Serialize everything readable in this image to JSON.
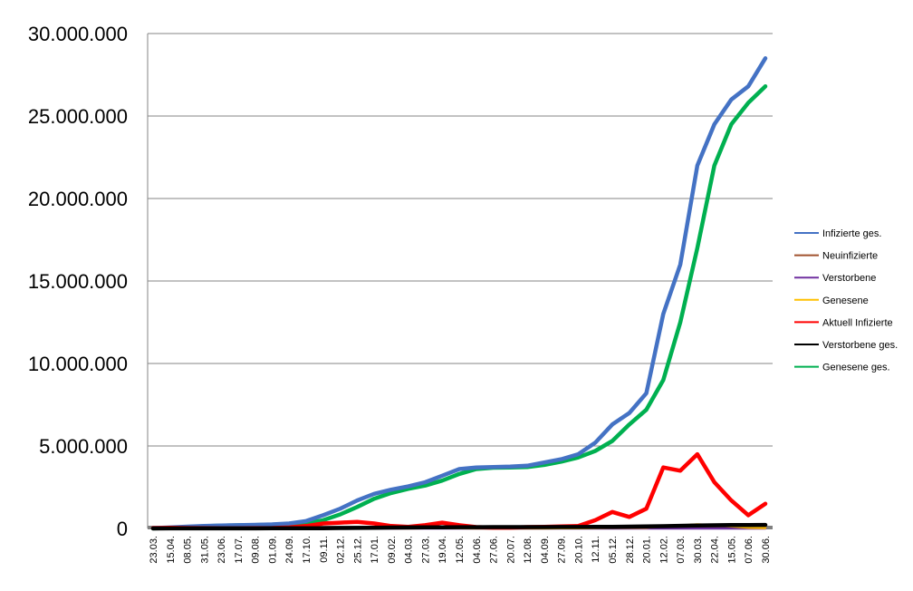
{
  "chart_data": {
    "type": "line",
    "title": "",
    "xlabel": "",
    "ylabel": "",
    "ylim": [
      0,
      30000000
    ],
    "yticks": [
      0,
      5000000,
      10000000,
      15000000,
      20000000,
      25000000,
      30000000
    ],
    "ytick_labels": [
      "0",
      "5.000.000",
      "10.000.000",
      "15.000.000",
      "20.000.000",
      "25.000.000",
      "30.000.000"
    ],
    "categories": [
      "23.03.",
      "15.04.",
      "08.05.",
      "31.05.",
      "23.06.",
      "17.07.",
      "09.08.",
      "01.09.",
      "24.09.",
      "17.10.",
      "09.11.",
      "02.12.",
      "25.12.",
      "17.01.",
      "09.02.",
      "04.03.",
      "27.03.",
      "19.04.",
      "12.05.",
      "04.06.",
      "27.06.",
      "20.07.",
      "12.08.",
      "04.09.",
      "27.09.",
      "20.10.",
      "12.11.",
      "05.12.",
      "28.12.",
      "20.01.",
      "12.02.",
      "07.03.",
      "30.03.",
      "22.04.",
      "15.05.",
      "07.06.",
      "30.06."
    ],
    "grid": true,
    "legend_position": "right",
    "series": [
      {
        "name": "Infizierte ges.",
        "color": "#4472C4",
        "values": [
          20000,
          60000,
          110000,
          150000,
          180000,
          200000,
          220000,
          250000,
          300000,
          450000,
          800000,
          1200000,
          1700000,
          2100000,
          2350000,
          2550000,
          2800000,
          3200000,
          3600000,
          3700000,
          3720000,
          3750000,
          3800000,
          4000000,
          4200000,
          4500000,
          5200000,
          6300000,
          7000000,
          8200000,
          13000000,
          16000000,
          22000000,
          24500000,
          26000000,
          26800000,
          28500000
        ]
      },
      {
        "name": "Neuinfizierte",
        "color": "#A0522D",
        "values": [
          1000,
          1000,
          1000,
          500,
          500,
          500,
          500,
          1000,
          2000,
          5000,
          12000,
          15000,
          14000,
          10000,
          8000,
          8000,
          10000,
          12000,
          10000,
          5000,
          3000,
          3000,
          5000,
          8000,
          10000,
          15000,
          30000,
          40000,
          35000,
          60000,
          80000,
          90000,
          100000,
          70000,
          30000,
          20000,
          40000
        ]
      },
      {
        "name": "Verstorbene",
        "color": "#7030A0",
        "values": [
          100,
          200,
          200,
          100,
          100,
          100,
          100,
          100,
          100,
          200,
          300,
          500,
          600,
          500,
          300,
          200,
          200,
          300,
          300,
          200,
          100,
          100,
          100,
          100,
          100,
          200,
          300,
          400,
          400,
          500,
          600,
          700,
          800,
          600,
          400,
          300,
          400
        ]
      },
      {
        "name": "Genesene",
        "color": "#FFC000",
        "values": [
          1000,
          1000,
          2000,
          1000,
          500,
          500,
          500,
          500,
          1000,
          3000,
          8000,
          12000,
          15000,
          14000,
          10000,
          8000,
          9000,
          11000,
          12000,
          8000,
          4000,
          3000,
          4000,
          7000,
          9000,
          12000,
          25000,
          35000,
          40000,
          50000,
          120000,
          180000,
          250000,
          200000,
          120000,
          50000,
          30000
        ]
      },
      {
        "name": "Aktuell Infizierte",
        "color": "#FF0000",
        "values": [
          20000,
          40000,
          30000,
          20000,
          15000,
          15000,
          20000,
          30000,
          60000,
          150000,
          300000,
          350000,
          400000,
          300000,
          150000,
          100000,
          200000,
          350000,
          200000,
          80000,
          50000,
          50000,
          80000,
          100000,
          120000,
          150000,
          500000,
          1000000,
          700000,
          1200000,
          3700000,
          3500000,
          4500000,
          2800000,
          1700000,
          800000,
          1500000
        ]
      },
      {
        "name": "Verstorbene ges.",
        "color": "#000000",
        "values": [
          1000,
          3000,
          5000,
          6000,
          7000,
          7500,
          8000,
          8500,
          9000,
          10000,
          15000,
          25000,
          35000,
          45000,
          55000,
          60000,
          65000,
          70000,
          75000,
          78000,
          80000,
          81000,
          82000,
          84000,
          86000,
          88000,
          92000,
          100000,
          110000,
          120000,
          140000,
          160000,
          180000,
          195000,
          205000,
          210000,
          215000
        ]
      },
      {
        "name": "Genesene ges.",
        "color": "#00B050",
        "values": [
          5000,
          30000,
          90000,
          140000,
          170000,
          190000,
          210000,
          230000,
          250000,
          300000,
          500000,
          850000,
          1300000,
          1800000,
          2150000,
          2400000,
          2600000,
          2900000,
          3300000,
          3600000,
          3680000,
          3700000,
          3720000,
          3850000,
          4050000,
          4300000,
          4700000,
          5300000,
          6300000,
          7200000,
          9000000,
          12500000,
          17000000,
          22000000,
          24500000,
          25800000,
          26800000
        ]
      }
    ]
  }
}
